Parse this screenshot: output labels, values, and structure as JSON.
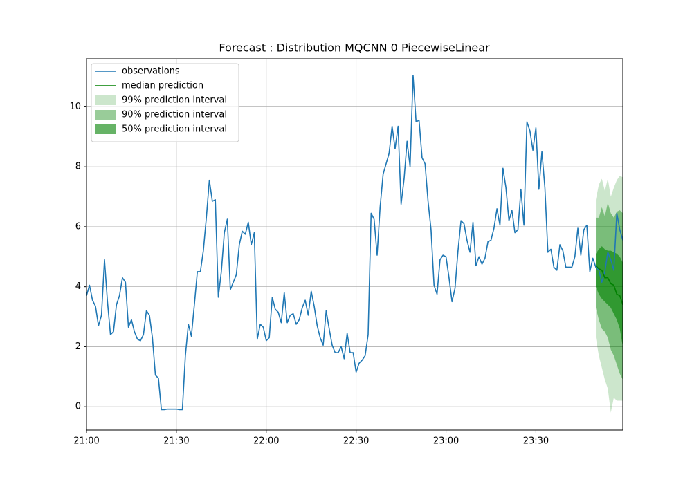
{
  "chart_data": {
    "type": "line",
    "title": "Forecast : Distribution MQCNN 0 PiecewiseLinear",
    "x": [
      "21:00",
      "21:01",
      "21:02",
      "21:03",
      "21:04",
      "21:05",
      "21:06",
      "21:07",
      "21:08",
      "21:09",
      "21:10",
      "21:11",
      "21:12",
      "21:13",
      "21:14",
      "21:15",
      "21:16",
      "21:17",
      "21:18",
      "21:19",
      "21:20",
      "21:21",
      "21:22",
      "21:23",
      "21:24",
      "21:25",
      "21:26",
      "21:27",
      "21:28",
      "21:29",
      "21:30",
      "21:31",
      "21:32",
      "21:33",
      "21:34",
      "21:35",
      "21:36",
      "21:37",
      "21:38",
      "21:39",
      "21:40",
      "21:41",
      "21:42",
      "21:43",
      "21:44",
      "21:45",
      "21:46",
      "21:47",
      "21:48",
      "21:49",
      "21:50",
      "21:51",
      "21:52",
      "21:53",
      "21:54",
      "21:55",
      "21:56",
      "21:57",
      "21:58",
      "21:59",
      "22:00",
      "22:01",
      "22:02",
      "22:03",
      "22:04",
      "22:05",
      "22:06",
      "22:07",
      "22:08",
      "22:09",
      "22:10",
      "22:11",
      "22:12",
      "22:13",
      "22:14",
      "22:15",
      "22:16",
      "22:17",
      "22:18",
      "22:19",
      "22:20",
      "22:21",
      "22:22",
      "22:23",
      "22:24",
      "22:25",
      "22:26",
      "22:27",
      "22:28",
      "22:29",
      "22:30",
      "22:31",
      "22:32",
      "22:33",
      "22:34",
      "22:35",
      "22:36",
      "22:37",
      "22:38",
      "22:39",
      "22:40",
      "22:41",
      "22:42",
      "22:43",
      "22:44",
      "22:45",
      "22:46",
      "22:47",
      "22:48",
      "22:49",
      "22:50",
      "22:51",
      "22:52",
      "22:53",
      "22:54",
      "22:55",
      "22:56",
      "22:57",
      "22:58",
      "22:59",
      "23:00",
      "23:01",
      "23:02",
      "23:03",
      "23:04",
      "23:05",
      "23:06",
      "23:07",
      "23:08",
      "23:09",
      "23:10",
      "23:11",
      "23:12",
      "23:13",
      "23:14",
      "23:15",
      "23:16",
      "23:17",
      "23:18",
      "23:19",
      "23:20",
      "23:21",
      "23:22",
      "23:23",
      "23:24",
      "23:25",
      "23:26",
      "23:27",
      "23:28",
      "23:29",
      "23:30",
      "23:31",
      "23:32",
      "23:33",
      "23:34",
      "23:35",
      "23:36",
      "23:37",
      "23:38",
      "23:39",
      "23:40",
      "23:41",
      "23:42",
      "23:43",
      "23:44",
      "23:45",
      "23:46",
      "23:47",
      "23:48",
      "23:49",
      "23:50",
      "23:51",
      "23:52",
      "23:53",
      "23:54",
      "23:55",
      "23:56",
      "23:57",
      "23:58",
      "23:59"
    ],
    "series": [
      {
        "name": "observations",
        "color": "#1f77b4",
        "values": [
          3.7,
          4.05,
          3.55,
          3.35,
          2.7,
          3.05,
          4.9,
          3.5,
          2.4,
          2.5,
          3.4,
          3.7,
          4.3,
          4.15,
          2.65,
          2.9,
          2.5,
          2.25,
          2.2,
          2.4,
          3.2,
          3.05,
          2.3,
          1.05,
          0.95,
          -0.1,
          -0.1,
          -0.08,
          -0.08,
          -0.08,
          -0.08,
          -0.1,
          -0.1,
          1.7,
          2.75,
          2.35,
          3.4,
          4.5,
          4.5,
          5.2,
          6.3,
          7.55,
          6.85,
          6.9,
          3.65,
          4.5,
          5.8,
          6.25,
          3.9,
          4.15,
          4.4,
          5.4,
          5.85,
          5.75,
          6.15,
          5.4,
          5.8,
          2.25,
          2.75,
          2.65,
          2.2,
          2.3,
          3.65,
          3.25,
          3.15,
          2.8,
          3.8,
          2.8,
          3.05,
          3.1,
          2.75,
          2.9,
          3.3,
          3.55,
          3.05,
          3.85,
          3.35,
          2.7,
          2.3,
          2.05,
          3.2,
          2.6,
          2.05,
          1.8,
          1.8,
          2.0,
          1.6,
          2.45,
          1.8,
          1.8,
          1.15,
          1.45,
          1.55,
          1.7,
          2.4,
          6.45,
          6.25,
          5.05,
          6.65,
          7.75,
          8.1,
          8.45,
          9.35,
          8.6,
          9.35,
          6.75,
          7.6,
          8.85,
          8.0,
          11.05,
          9.5,
          9.55,
          8.3,
          8.1,
          6.85,
          5.9,
          4.05,
          3.75,
          4.9,
          5.05,
          5.0,
          4.3,
          3.5,
          3.95,
          5.2,
          6.2,
          6.1,
          5.55,
          5.15,
          6.15,
          4.7,
          5.0,
          4.75,
          4.95,
          5.5,
          5.55,
          5.95,
          6.6,
          6.05,
          7.95,
          7.3,
          6.2,
          6.55,
          5.8,
          5.9,
          7.25,
          6.05,
          9.5,
          9.2,
          8.55,
          9.3,
          7.25,
          8.5,
          7.3,
          5.15,
          5.25,
          4.65,
          4.55,
          5.4,
          5.2,
          4.65,
          4.65,
          4.65,
          5.0,
          5.95,
          5.05,
          5.9,
          6.05,
          4.5,
          4.95,
          4.65,
          4.55,
          4.15,
          4.5,
          5.15,
          4.9,
          4.55,
          6.45,
          5.9,
          5.55
        ]
      }
    ],
    "forecast": {
      "x": [
        "23:50",
        "23:51",
        "23:52",
        "23:53",
        "23:54",
        "23:55",
        "23:56",
        "23:57",
        "23:58",
        "23:59"
      ],
      "median": {
        "name": "median prediction",
        "color": "green",
        "values": [
          4.7,
          4.6,
          4.55,
          4.3,
          4.3,
          4.1,
          4.05,
          3.75,
          3.7,
          3.4
        ]
      },
      "intervals": [
        {
          "name": "99% prediction interval",
          "color": "green",
          "alpha": 0.2,
          "lower": [
            2.3,
            1.7,
            1.3,
            0.9,
            0.6,
            -0.2,
            0.3,
            0.2,
            0.2,
            0.2
          ],
          "upper": [
            6.9,
            7.4,
            7.6,
            7.2,
            7.6,
            7.0,
            7.3,
            7.55,
            7.7,
            7.65
          ]
        },
        {
          "name": "90% prediction interval",
          "color": "green",
          "alpha": 0.4,
          "lower": [
            3.3,
            2.9,
            2.6,
            2.5,
            2.3,
            1.9,
            1.7,
            1.4,
            1.1,
            0.9
          ],
          "upper": [
            6.3,
            6.3,
            6.65,
            6.35,
            6.8,
            6.45,
            6.3,
            6.5,
            6.55,
            6.45
          ]
        },
        {
          "name": "50% prediction interval",
          "color": "green",
          "alpha": 0.6,
          "lower": [
            4.0,
            3.75,
            3.6,
            3.5,
            3.4,
            3.3,
            3.1,
            2.9,
            2.6,
            2.0
          ],
          "upper": [
            5.1,
            5.25,
            5.35,
            5.25,
            5.2,
            5.2,
            5.15,
            5.1,
            5.0,
            4.8
          ]
        }
      ]
    },
    "xlim": [
      "21:00",
      "23:59"
    ],
    "xticks": [
      "21:00",
      "21:30",
      "22:00",
      "22:30",
      "23:00",
      "23:30"
    ],
    "ylim": [
      -0.78,
      11.6
    ],
    "yticks": [
      0,
      2,
      4,
      6,
      8,
      10
    ],
    "grid": true,
    "legend": "upper left"
  }
}
